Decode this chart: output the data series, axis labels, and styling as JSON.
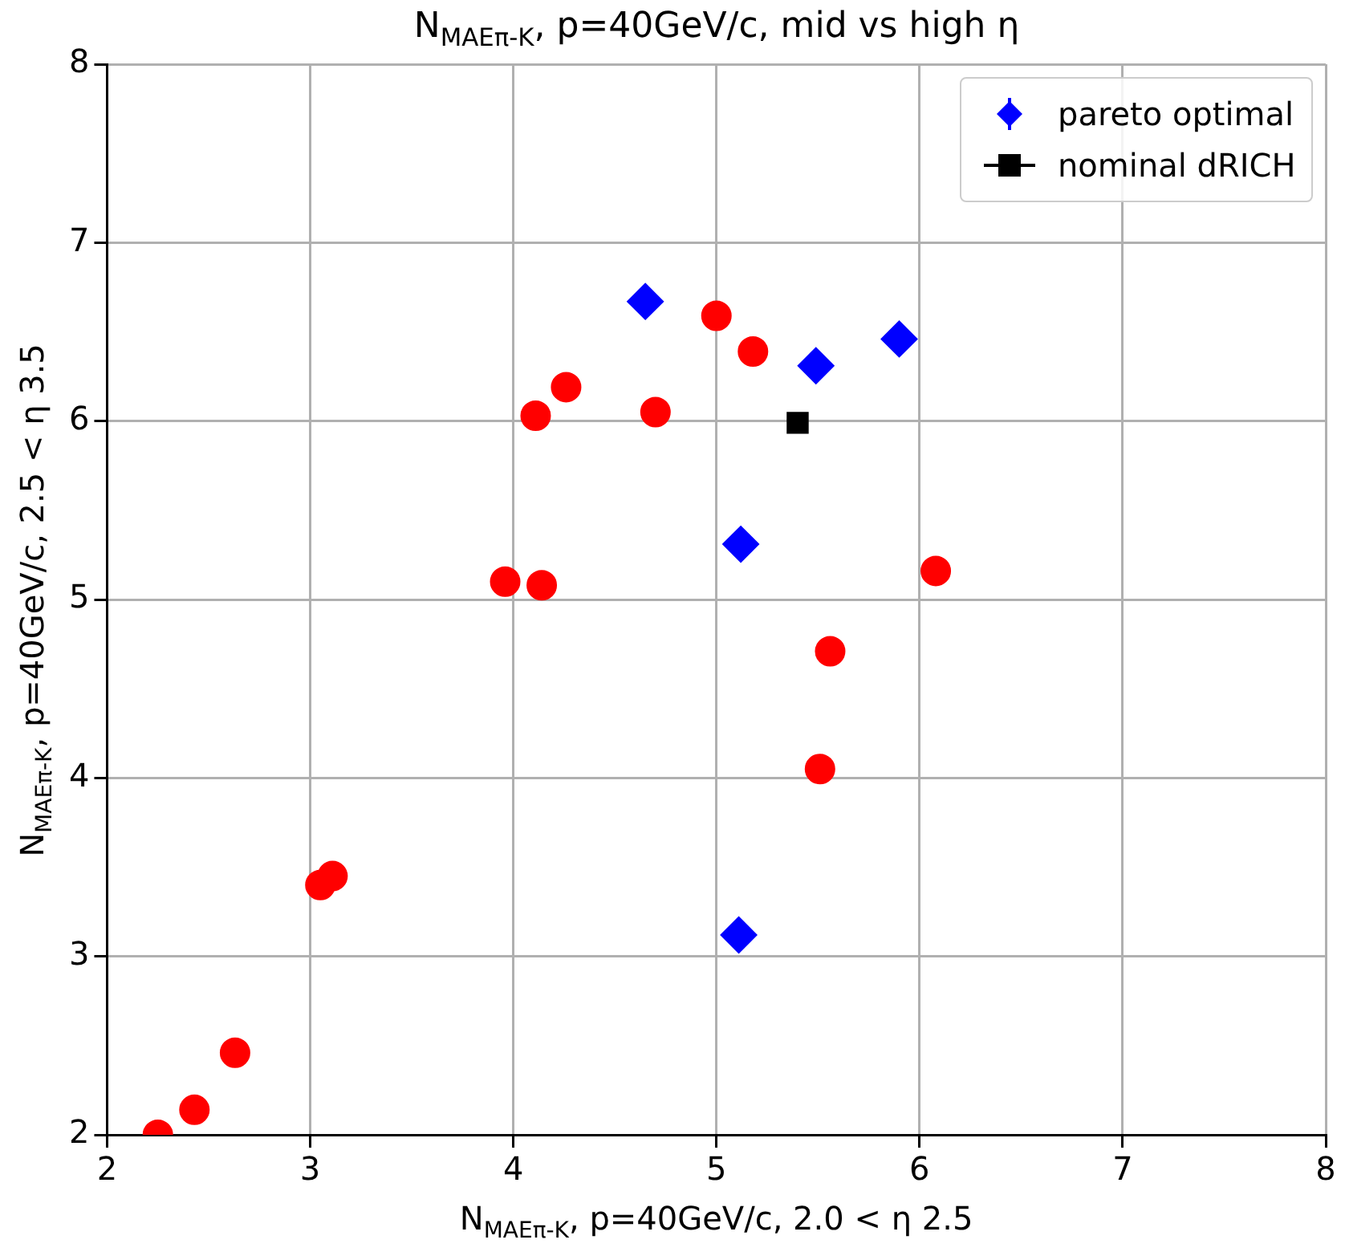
{
  "chart_data": {
    "type": "scatter",
    "title": "N$_{MAEπ-K}$, p=40GeV/c, mid vs high η",
    "xlabel": "N$_{MAEπ-K}$, p=40GeV/c, 2.0 < η 2.5",
    "ylabel": "N$_{MAEπ-K}$, p=40GeV/c, 2.5 < η 3.5",
    "xlim": [
      2,
      8
    ],
    "xticks": [
      2,
      3,
      4,
      5,
      6,
      7,
      8
    ],
    "ylim": [
      2,
      8
    ],
    "yticks": [
      2,
      3,
      4,
      5,
      6,
      7,
      8
    ],
    "grid": true,
    "legend": "top right",
    "series": [
      {
        "color": "#ff0000",
        "marker": "circle",
        "x": [
          2.25,
          2.43,
          2.63,
          3.05,
          3.11,
          3.96,
          4.14,
          4.11,
          4.26,
          4.7,
          5.0,
          5.18,
          5.56,
          5.51,
          6.08
        ],
        "values": [
          2.0,
          2.14,
          2.46,
          3.4,
          3.45,
          5.1,
          5.08,
          6.03,
          6.19,
          6.05,
          6.59,
          6.39,
          4.71,
          4.05,
          5.16
        ]
      },
      {
        "name": "pareto optimal",
        "color": "#0000ff",
        "marker": "diamond",
        "x": [
          4.65,
          5.49,
          5.9,
          5.12,
          5.11
        ],
        "values": [
          6.67,
          6.31,
          6.46,
          5.31,
          3.12
        ]
      },
      {
        "name": "nominal dRICH",
        "color": "#000000",
        "marker": "square",
        "x": [
          5.4
        ],
        "values": [
          5.99
        ]
      }
    ]
  }
}
